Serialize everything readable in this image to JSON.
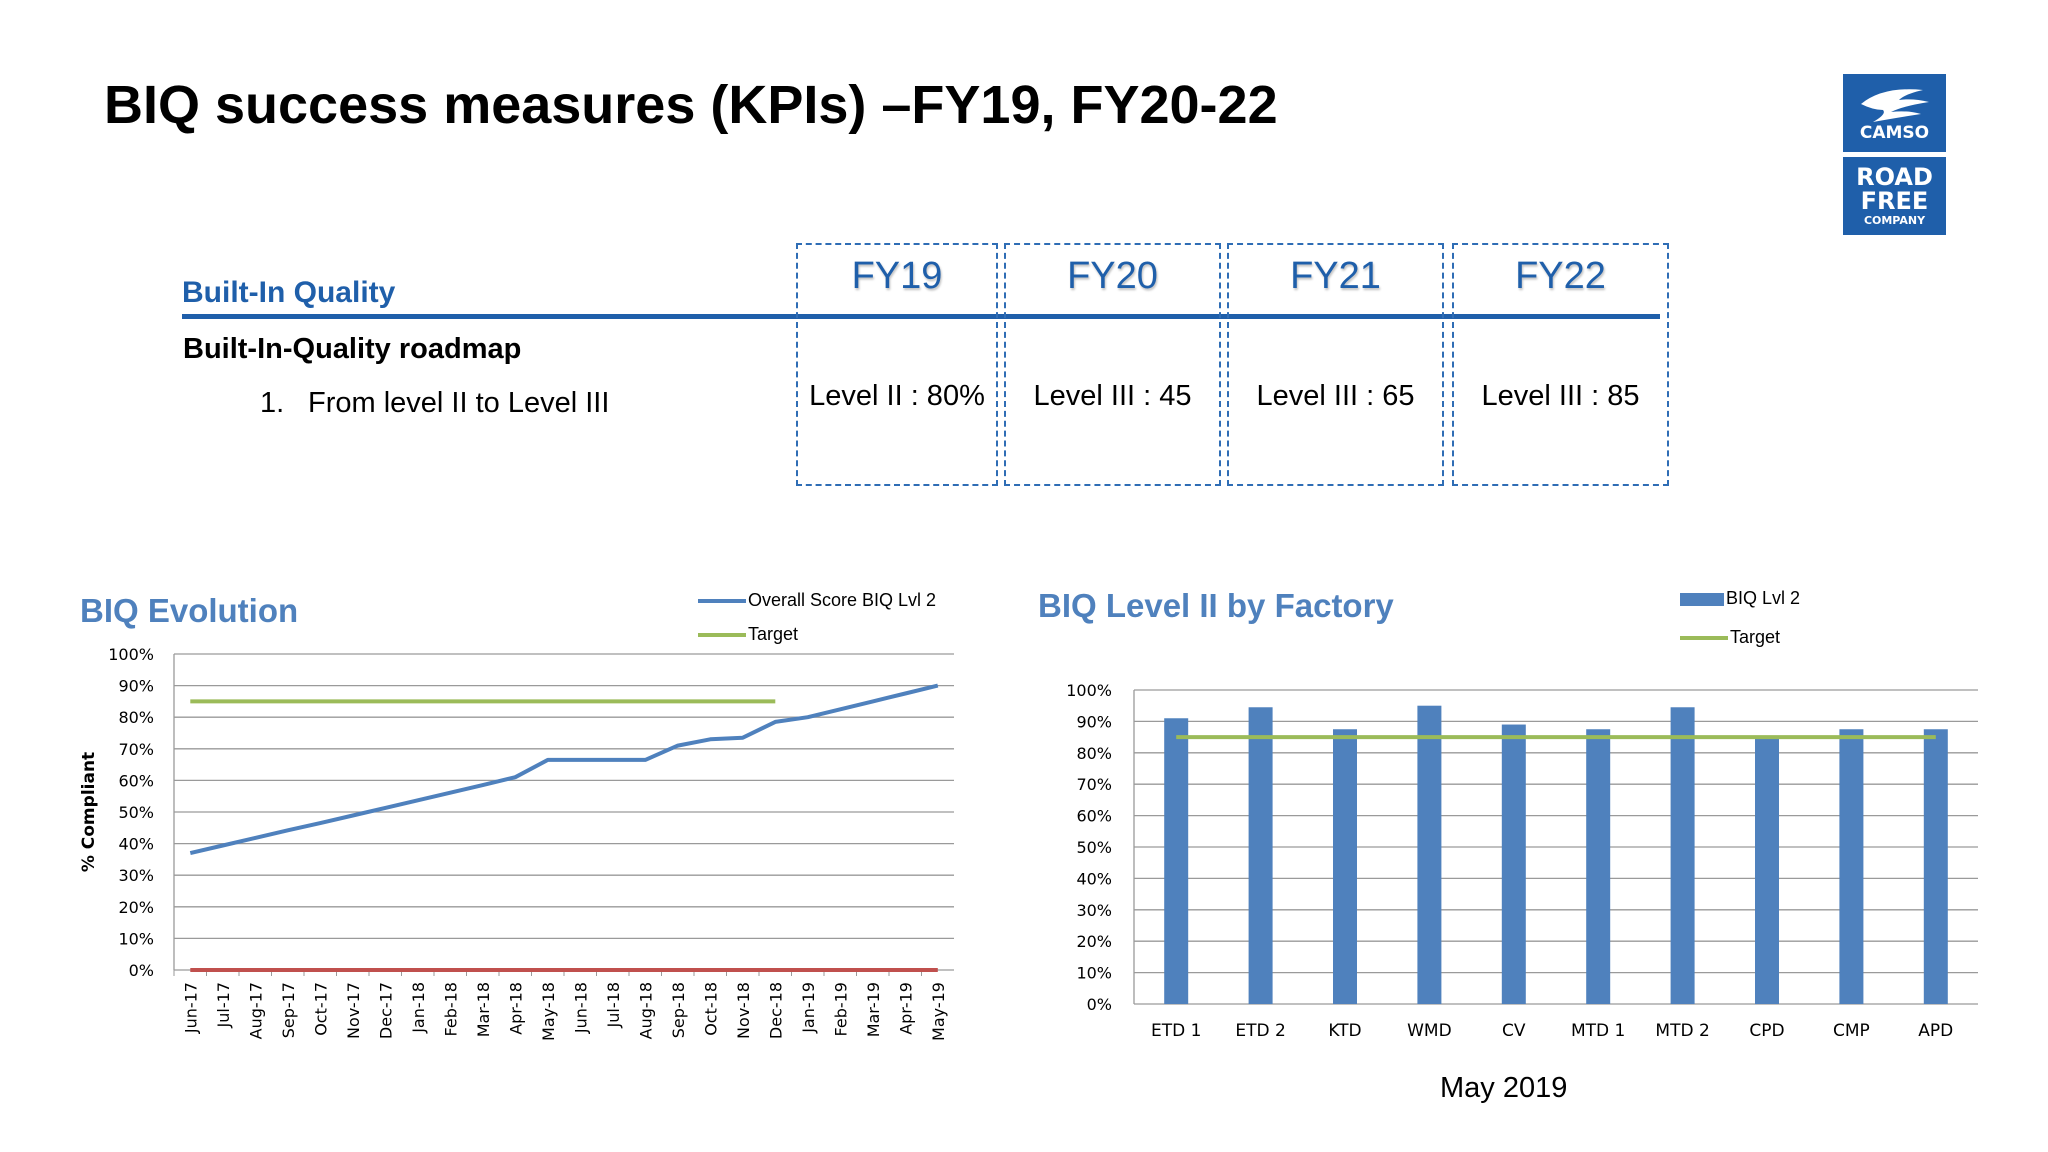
{
  "title": "BIQ success measures (KPIs) –FY19, FY20-22",
  "logo": {
    "top_text": "CAMSO",
    "bottom_lines": [
      "ROAD",
      "FREE",
      "COMPANY"
    ],
    "color": "#1f5faa"
  },
  "roadmap": {
    "section": "Built-In Quality",
    "heading": "Built-In-Quality roadmap",
    "item_number": "1.",
    "item_text": "From level II to Level III",
    "years": [
      {
        "label": "FY19",
        "level": "Level II : 80%"
      },
      {
        "label": "FY20",
        "level": "Level III : 45"
      },
      {
        "label": "FY21",
        "level": "Level III : 65"
      },
      {
        "label": "FY22",
        "level": "Level III : 85"
      }
    ]
  },
  "caption": "May 2019",
  "chart_data": [
    {
      "type": "line",
      "title": "BIQ Evolution",
      "ylabel": "% Compliant",
      "xlabel": "",
      "ylim": [
        0,
        100
      ],
      "yticks": [
        "0%",
        "10%",
        "20%",
        "30%",
        "40%",
        "50%",
        "60%",
        "70%",
        "80%",
        "90%",
        "100%"
      ],
      "grid": true,
      "legend": "top-right",
      "categories": [
        "Jun-17",
        "Jul-17",
        "Aug-17",
        "Sep-17",
        "Oct-17",
        "Nov-17",
        "Dec-17",
        "Jan-18",
        "Feb-18",
        "Mar-18",
        "Apr-18",
        "May-18",
        "Jun-18",
        "Jul-18",
        "Aug-18",
        "Sep-18",
        "Oct-18",
        "Nov-18",
        "Dec-18",
        "Jan-19",
        "Feb-19",
        "Mar-19",
        "Apr-19",
        "May-19"
      ],
      "series": [
        {
          "name": "Overall Score  BIQ Lvl 2",
          "color": "#4f81bd",
          "values": [
            37,
            39.4,
            41.8,
            44.2,
            46.5,
            48.9,
            51.3,
            53.7,
            56.1,
            58.5,
            61,
            66.5,
            66.5,
            66.5,
            66.5,
            71,
            73,
            73.5,
            78.5,
            80,
            82.5,
            85,
            87.5,
            90
          ]
        },
        {
          "name": "Target",
          "color": "#9bbb59",
          "values": [
            85,
            85,
            85,
            85,
            85,
            85,
            85,
            85,
            85,
            85,
            85,
            85,
            85,
            85,
            85,
            85,
            85,
            85,
            85,
            null,
            null,
            null,
            null,
            null
          ]
        },
        {
          "name": "",
          "color": "#c0504d",
          "values": [
            0,
            0,
            0,
            0,
            0,
            0,
            0,
            0,
            0,
            0,
            0,
            0,
            0,
            0,
            0,
            0,
            0,
            0,
            0,
            0,
            0,
            0,
            0,
            0
          ]
        }
      ]
    },
    {
      "type": "bar",
      "title": "BIQ Level II by Factory",
      "xlabel": "",
      "ylabel": "",
      "ylim": [
        0,
        100
      ],
      "yticks": [
        "0%",
        "10%",
        "20%",
        "30%",
        "40%",
        "50%",
        "60%",
        "70%",
        "80%",
        "90%",
        "100%"
      ],
      "grid": true,
      "legend": "top-right",
      "categories": [
        "ETD 1",
        "ETD 2",
        "KTD",
        "WMD",
        "CV",
        "MTD 1",
        "MTD 2",
        "CPD",
        "CMP",
        "APD"
      ],
      "series": [
        {
          "name": "BIQ Lvl 2",
          "color": "#4f81bd",
          "values": [
            91,
            94.5,
            87.5,
            95,
            89,
            87.5,
            94.5,
            85.5,
            87.5,
            87.5
          ]
        },
        {
          "name": "Target",
          "color": "#9bbb59",
          "values": [
            85,
            85,
            85,
            85,
            85,
            85,
            85,
            85,
            85,
            85
          ]
        }
      ]
    }
  ]
}
